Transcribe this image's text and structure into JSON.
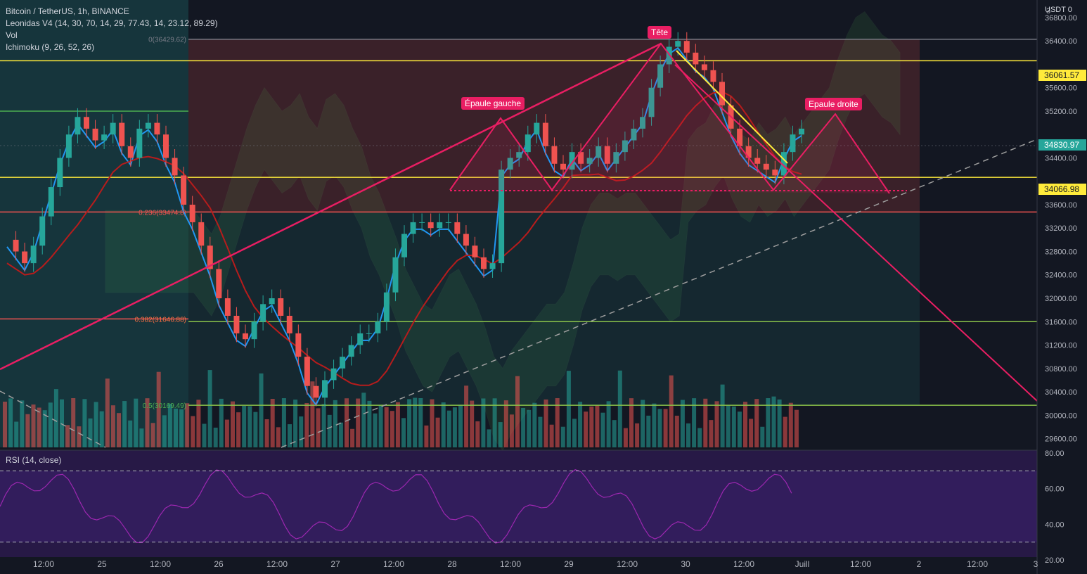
{
  "header": {
    "symbol_line": "Bitcoin / TetherUS, 1h, BINANCE",
    "indicator_1": "Leonidas V4 (14, 30, 70, 14, 29, 77.43, 14, 23.12, 89.29)",
    "indicator_2": "Vol",
    "indicator_3": "Ichimoku (9, 26, 52, 26)"
  },
  "rsi_panel": {
    "title": "RSI (14, close)"
  },
  "price_axis": {
    "unit": "USDT 0",
    "top_tick": "3",
    "ticks": [
      "36800.00",
      "36400.00",
      "35600.00",
      "35200.00",
      "34400.00",
      "33600.00",
      "33200.00",
      "32800.00",
      "32400.00",
      "32000.00",
      "31600.00",
      "31200.00",
      "30800.00",
      "30400.00",
      "30000.00",
      "29600.00"
    ],
    "badges": [
      {
        "label": "36061.57",
        "bg": "#ffeb3b",
        "fg": "#131722"
      },
      {
        "label": "34830.97",
        "bg": "#26a69a",
        "fg": "#ffffff"
      },
      {
        "label": "34066.98",
        "bg": "#ffeb3b",
        "fg": "#131722"
      }
    ]
  },
  "rsi_axis": {
    "ticks": [
      "80.00",
      "60.00",
      "40.00",
      "20.00"
    ]
  },
  "time_axis": {
    "labels": [
      "12:00",
      "25",
      "12:00",
      "26",
      "12:00",
      "27",
      "12:00",
      "28",
      "12:00",
      "29",
      "12:00",
      "30",
      "12:00",
      "Juill",
      "12:00",
      "2",
      "12:00",
      "3"
    ]
  },
  "fib_levels": [
    {
      "label": "0(36429.62)",
      "price": 36429.62,
      "color": "#787b86"
    },
    {
      "label": "0.236(33474.8)",
      "price": 33474.8,
      "color": "#ef5350"
    },
    {
      "label": "0.382(31646.88)",
      "price": 31646.88,
      "color": "#ff7043"
    },
    {
      "label": "0.5(30169.49)",
      "price": 30169.49,
      "color": "#4caf50"
    }
  ],
  "pattern_labels": {
    "head": "Tête",
    "left_shoulder": "Épaule gauche",
    "right_shoulder": "Epaule droite"
  },
  "colors": {
    "background": "#131722",
    "bull": "#26a69a",
    "bear": "#ef5350",
    "pattern": "#e91e63",
    "trendline": "#ffeb3b",
    "tenkan": "#2196f3",
    "kijun": "#b71c1c",
    "rsi": "#9c27b0"
  },
  "chart_data": {
    "type": "candlestick",
    "price_range": [
      29450,
      37100
    ],
    "rsi_range": [
      20,
      80
    ],
    "rsi_levels": [
      70,
      30
    ],
    "x_range": [
      "2021-06-24 07:00",
      "2021-07-03 00:00"
    ],
    "horizontal_levels": [
      36061.57,
      34066.98,
      33474.8,
      31646.88,
      30169.49
    ],
    "close_series": [
      33000,
      32800,
      32600,
      32900,
      33400,
      33900,
      34400,
      34800,
      35100,
      34900,
      34700,
      34800,
      35000,
      34600,
      34400,
      34900,
      35000,
      34800,
      34400,
      34100,
      33600,
      33300,
      32900,
      32500,
      32000,
      31700,
      31400,
      31300,
      31600,
      31900,
      32000,
      31700,
      31400,
      31000,
      30500,
      30300,
      30600,
      30800,
      31000,
      31200,
      31400,
      31400,
      31600,
      32100,
      32700,
      33100,
      33300,
      33300,
      33200,
      33300,
      33300,
      33100,
      32900,
      32700,
      32500,
      32600,
      34200,
      34400,
      34500,
      34800,
      35000,
      34600,
      34300,
      34200,
      34500,
      34300,
      34400,
      34600,
      34300,
      34500,
      34700,
      34900,
      35100,
      35600,
      36000,
      36300,
      36400,
      36200,
      36000,
      35900,
      35700,
      35300,
      34900,
      34600,
      34400,
      34300,
      34200,
      34100,
      34500,
      34800,
      34900
    ],
    "highlighted_points": [
      {
        "name": "Épaule gauche",
        "price": 35300
      },
      {
        "name": "Tête",
        "price": 36600
      },
      {
        "name": "Epaule droite",
        "price": 35400
      }
    ]
  }
}
